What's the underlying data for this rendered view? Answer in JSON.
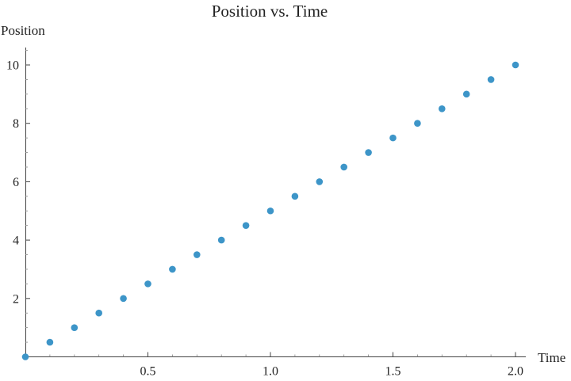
{
  "chart_data": {
    "type": "scatter",
    "title": "Position vs. Time",
    "xlabel": "Time",
    "ylabel": "Position",
    "xlim": [
      0,
      2.0
    ],
    "ylim": [
      0,
      10.5
    ],
    "x_ticks": [
      "0.5",
      "1.0",
      "1.5",
      "2.0"
    ],
    "y_ticks": [
      "2",
      "4",
      "6",
      "8",
      "10"
    ],
    "grid": false,
    "series": [
      {
        "color": "#3d95c8",
        "points": [
          {
            "x": 0.0,
            "y": 0.0
          },
          {
            "x": 0.1,
            "y": 0.5
          },
          {
            "x": 0.2,
            "y": 1.0
          },
          {
            "x": 0.3,
            "y": 1.5
          },
          {
            "x": 0.4,
            "y": 2.0
          },
          {
            "x": 0.5,
            "y": 2.5
          },
          {
            "x": 0.6,
            "y": 3.0
          },
          {
            "x": 0.7,
            "y": 3.5
          },
          {
            "x": 0.8,
            "y": 4.0
          },
          {
            "x": 0.9,
            "y": 4.5
          },
          {
            "x": 1.0,
            "y": 5.0
          },
          {
            "x": 1.1,
            "y": 5.5
          },
          {
            "x": 1.2,
            "y": 6.0
          },
          {
            "x": 1.3,
            "y": 6.5
          },
          {
            "x": 1.4,
            "y": 7.0
          },
          {
            "x": 1.5,
            "y": 7.5
          },
          {
            "x": 1.6,
            "y": 8.0
          },
          {
            "x": 1.7,
            "y": 8.5
          },
          {
            "x": 1.8,
            "y": 9.0
          },
          {
            "x": 1.9,
            "y": 9.5
          },
          {
            "x": 2.0,
            "y": 10.0
          }
        ]
      }
    ]
  }
}
